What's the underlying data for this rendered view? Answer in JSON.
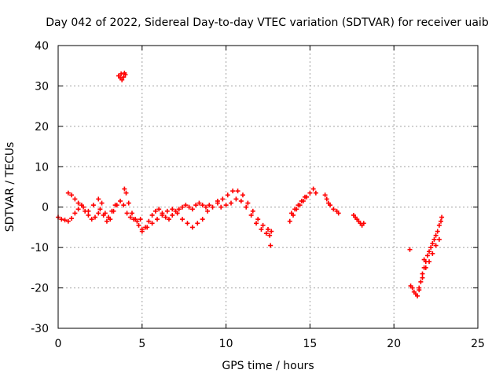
{
  "chart_data": {
    "type": "scatter",
    "title": "Day 042 of 2022, Sidereal Day-to-day VTEC variation (SDTVAR) for receiver uaib",
    "xlabel": "GPS time / hours",
    "ylabel": "SDTVAR / TECUs",
    "xlim": [
      0,
      25
    ],
    "ylim": [
      -30,
      40
    ],
    "x_ticks": [
      0,
      5,
      10,
      15,
      20,
      25
    ],
    "y_ticks": [
      -30,
      -20,
      -10,
      0,
      10,
      20,
      30,
      40
    ],
    "x_tick_labels": [
      "0",
      "5",
      "10",
      "15",
      "20",
      "25"
    ],
    "y_tick_labels": [
      "-30",
      "-20",
      "-10",
      "0",
      "10",
      "20",
      "30",
      "40"
    ],
    "grid": true,
    "marker": "+",
    "marker_color": "#ff0000",
    "series": [
      {
        "name": "SDTVAR",
        "x": [
          3.6,
          3.75,
          3.9,
          4.0,
          3.8,
          3.7,
          3.95,
          0.0,
          0.2,
          0.4,
          0.6,
          0.8,
          1.0,
          1.2,
          1.4,
          1.6,
          1.8,
          2.0,
          2.2,
          2.4,
          2.5,
          2.7,
          2.9,
          3.1,
          3.3,
          3.5,
          3.7,
          3.9,
          4.1,
          4.3,
          4.5,
          4.7,
          4.9,
          0.6,
          0.8,
          1.0,
          1.2,
          1.5,
          1.8,
          2.1,
          2.4,
          2.6,
          2.8,
          3.0,
          3.2,
          3.4,
          3.95,
          4.05,
          4.2,
          4.4,
          4.6,
          4.8,
          5.0,
          5.2,
          5.4,
          5.6,
          5.8,
          6.0,
          6.2,
          6.4,
          6.6,
          6.8,
          7.0,
          7.2,
          7.4,
          7.6,
          7.8,
          8.0,
          8.2,
          8.4,
          8.6,
          8.8,
          9.0,
          5.0,
          5.3,
          5.6,
          5.9,
          6.2,
          6.5,
          6.8,
          7.1,
          7.4,
          7.7,
          8.0,
          8.3,
          8.6,
          8.9,
          9.2,
          9.5,
          9.5,
          9.8,
          10.1,
          10.4,
          10.7,
          11.0,
          11.3,
          11.6,
          11.9,
          12.2,
          12.5,
          12.7,
          9.7,
          10.0,
          10.3,
          10.6,
          10.9,
          11.2,
          11.5,
          11.8,
          12.1,
          12.4,
          12.6,
          12.65,
          13.8,
          14.0,
          14.2,
          14.4,
          14.6,
          14.8,
          15.0,
          15.2,
          15.35,
          13.9,
          14.1,
          14.3,
          14.5,
          14.7,
          15.9,
          16.0,
          16.1,
          16.2,
          16.4,
          16.6,
          16.7,
          17.6,
          17.7,
          17.8,
          17.9,
          18.0,
          18.1,
          18.2,
          20.95,
          21.0,
          21.2,
          21.4,
          21.5,
          21.6,
          21.7,
          21.8,
          21.9,
          22.0,
          22.1,
          22.2,
          22.3,
          22.4,
          22.5,
          22.6,
          22.7,
          22.8,
          22.85,
          21.1,
          21.3,
          21.5,
          21.7,
          21.9,
          22.1,
          22.3,
          22.5,
          22.7,
          21.8
        ],
        "y": [
          32.5,
          33.0,
          32.2,
          32.8,
          31.5,
          32.0,
          33.2,
          -2.5,
          -3.0,
          -3.2,
          -3.5,
          -2.8,
          -1.5,
          -0.5,
          0.5,
          -1.0,
          -2.0,
          -3.0,
          -2.5,
          -1.5,
          -0.5,
          -2.0,
          -3.5,
          -3.0,
          -1.0,
          0.5,
          1.5,
          0.5,
          -1.5,
          -2.5,
          -3.0,
          -3.5,
          -3.0,
          3.5,
          3.0,
          2.0,
          1.0,
          0.0,
          -1.0,
          0.5,
          2.0,
          1.0,
          -1.5,
          -2.5,
          -1.0,
          0.5,
          4.5,
          3.5,
          1.0,
          -1.5,
          -3.0,
          -4.5,
          -5.5,
          -5.0,
          -3.5,
          -2.0,
          -1.0,
          -0.5,
          -1.5,
          -2.5,
          -3.0,
          -2.0,
          -1.0,
          -0.5,
          0.0,
          0.5,
          0.0,
          -0.5,
          0.5,
          1.0,
          0.5,
          0.0,
          0.5,
          -6.0,
          -5.0,
          -4.0,
          -3.0,
          -2.0,
          -1.0,
          -0.5,
          -1.5,
          -3.0,
          -4.0,
          -5.0,
          -4.0,
          -3.0,
          -1.0,
          0.0,
          1.0,
          1.5,
          2.0,
          3.0,
          4.0,
          4.0,
          3.0,
          1.0,
          -1.0,
          -3.0,
          -4.5,
          -5.5,
          -6.0,
          0.0,
          0.5,
          1.0,
          2.0,
          1.5,
          0.0,
          -2.0,
          -4.0,
          -5.5,
          -6.5,
          -7.0,
          -9.5,
          -3.5,
          -2.0,
          -0.5,
          0.5,
          1.5,
          2.5,
          3.5,
          4.5,
          3.5,
          -1.5,
          -0.5,
          0.5,
          1.5,
          2.5,
          3.0,
          2.0,
          1.0,
          0.5,
          -0.5,
          -1.0,
          -1.5,
          -2.0,
          -2.5,
          -3.0,
          -3.5,
          -4.0,
          -4.5,
          -4.0,
          -10.5,
          -19.5,
          -21.0,
          -22.0,
          -20.5,
          -18.5,
          -16.5,
          -15.0,
          -13.5,
          -12.0,
          -11.0,
          -10.0,
          -9.0,
          -8.0,
          -7.0,
          -6.0,
          -4.5,
          -3.5,
          -2.5,
          -20.0,
          -21.5,
          -20.0,
          -17.5,
          -15.0,
          -13.5,
          -11.5,
          -9.5,
          -8.0,
          -13.0
        ]
      }
    ]
  }
}
